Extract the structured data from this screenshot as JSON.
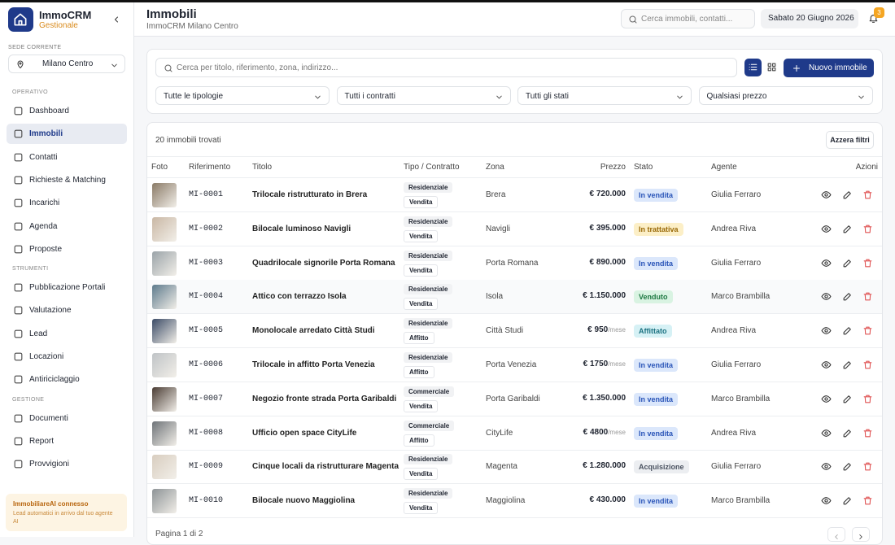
{
  "sidebar": {
    "brand": "ImmoCRM",
    "brand_sub": "Gestionale",
    "office_label": "SEDE CORRENTE",
    "office": "Milano Centro",
    "sections": [
      {
        "title": "OPERATIVO",
        "items": [
          {
            "label": "Dashboard",
            "active": false
          },
          {
            "label": "Immobili",
            "active": true
          },
          {
            "label": "Contatti",
            "active": false
          },
          {
            "label": "Richieste & Matching",
            "active": false
          },
          {
            "label": "Incarichi",
            "active": false
          },
          {
            "label": "Agenda",
            "active": false
          },
          {
            "label": "Proposte",
            "active": false
          }
        ]
      },
      {
        "title": "STRUMENTI",
        "items": [
          {
            "label": "Pubblicazione Portali",
            "active": false
          },
          {
            "label": "Valutazione",
            "active": false
          },
          {
            "label": "Lead",
            "active": false
          },
          {
            "label": "Locazioni",
            "active": false
          },
          {
            "label": "Antiriciclaggio",
            "active": false
          }
        ]
      },
      {
        "title": "GESTIONE",
        "items": [
          {
            "label": "Documenti",
            "active": false
          },
          {
            "label": "Report",
            "active": false
          },
          {
            "label": "Provvigioni",
            "active": false
          }
        ]
      }
    ],
    "notice": {
      "title": "ImmobiliareAI connesso",
      "text": "Lead automatici in arrivo dal tuo agente AI"
    }
  },
  "header": {
    "title": "Immobili",
    "subtitle": "ImmoCRM Milano Centro",
    "search_placeholder": "Cerca immobili, contatti...",
    "date": "Sabato 20 Giugno 2026",
    "notifications": 3
  },
  "filters": {
    "search_placeholder": "Cerca per titolo, riferimento, zona, indirizzo...",
    "new_button": "Nuovo immobile",
    "selects": [
      "Tutte le tipologie",
      "Tutti i contratti",
      "Tutti gli stati",
      "Qualsiasi prezzo"
    ]
  },
  "table": {
    "count_text": "20 immobili trovati",
    "reset": "Azzera filtri",
    "columns": [
      "Foto",
      "Riferimento",
      "Titolo",
      "Tipo / Contratto",
      "Zona",
      "Prezzo",
      "Stato",
      "Agente",
      "Azioni"
    ],
    "rows": [
      {
        "ref": "MI-0001",
        "title": "Trilocale ristrutturato in Brera",
        "type": "Residenziale",
        "contract": "Vendita",
        "zone": "Brera",
        "price": "€ 720.000",
        "status": "In vendita",
        "status_tone": "blue",
        "agent": "Giulia Ferraro"
      },
      {
        "ref": "MI-0002",
        "title": "Bilocale luminoso Navigli",
        "type": "Residenziale",
        "contract": "Vendita",
        "zone": "Navigli",
        "price": "€ 395.000",
        "status": "In trattativa",
        "status_tone": "yellow",
        "agent": "Andrea Riva"
      },
      {
        "ref": "MI-0003",
        "title": "Quadrilocale signorile Porta Romana",
        "type": "Residenziale",
        "contract": "Vendita",
        "zone": "Porta Romana",
        "price": "€ 890.000",
        "status": "In vendita",
        "status_tone": "blue",
        "agent": "Giulia Ferraro"
      },
      {
        "ref": "MI-0004",
        "title": "Attico con terrazzo Isola",
        "type": "Residenziale",
        "contract": "Vendita",
        "zone": "Isola",
        "price": "€ 1.150.000",
        "status": "Venduto",
        "status_tone": "green",
        "agent": "Marco Brambilla"
      },
      {
        "ref": "MI-0005",
        "title": "Monolocale arredato Città Studi",
        "type": "Residenziale",
        "contract": "Affitto",
        "zone": "Città Studi",
        "price": "€ 950",
        "per": "/mese",
        "status": "Affittato",
        "status_tone": "teal",
        "agent": "Andrea Riva"
      },
      {
        "ref": "MI-0006",
        "title": "Trilocale in affitto Porta Venezia",
        "type": "Residenziale",
        "contract": "Affitto",
        "zone": "Porta Venezia",
        "price": "€ 1750",
        "per": "/mese",
        "status": "In vendita",
        "status_tone": "blue",
        "agent": "Giulia Ferraro"
      },
      {
        "ref": "MI-0007",
        "title": "Negozio fronte strada Porta Garibaldi",
        "type": "Commerciale",
        "contract": "Vendita",
        "zone": "Porta Garibaldi",
        "price": "€ 1.350.000",
        "status": "In vendita",
        "status_tone": "blue",
        "agent": "Marco Brambilla"
      },
      {
        "ref": "MI-0008",
        "title": "Ufficio open space CityLife",
        "type": "Commerciale",
        "contract": "Affitto",
        "zone": "CityLife",
        "price": "€ 4800",
        "per": "/mese",
        "status": "In vendita",
        "status_tone": "blue",
        "agent": "Andrea Riva"
      },
      {
        "ref": "MI-0009",
        "title": "Cinque locali da ristrutturare Magenta",
        "type": "Residenziale",
        "contract": "Vendita",
        "zone": "Magenta",
        "price": "€ 1.280.000",
        "status": "Acquisizione",
        "status_tone": "gray",
        "agent": "Giulia Ferraro"
      },
      {
        "ref": "MI-0010",
        "title": "Bilocale nuovo Maggiolina",
        "type": "Residenziale",
        "contract": "Vendita",
        "zone": "Maggiolina",
        "price": "€ 430.000",
        "status": "In vendita",
        "status_tone": "blue",
        "agent": "Marco Brambilla"
      }
    ],
    "pagination": "Pagina 1 di 2"
  }
}
